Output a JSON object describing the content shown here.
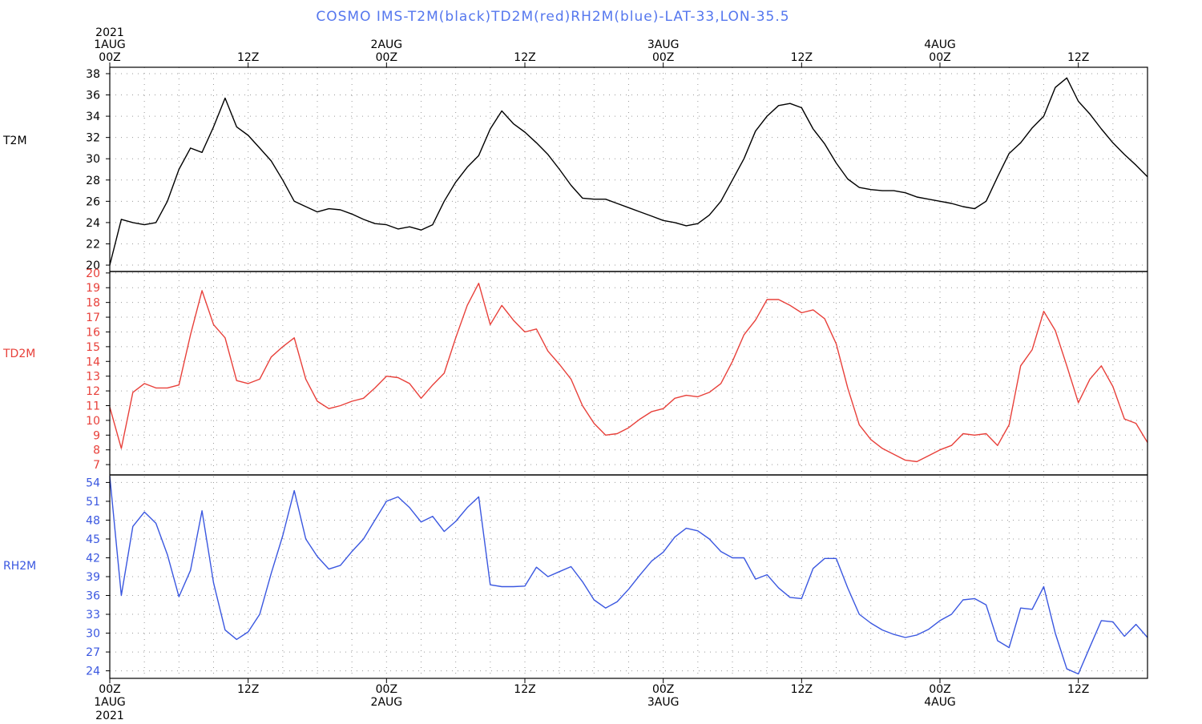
{
  "title": "COSMO  IMS-T2M(black)TD2M(red)RH2M(blue)-LAT-33,LON-35.5",
  "colors": {
    "t2m": "#000000",
    "td2m": "#e8403a",
    "rh2m": "#3a57e0",
    "title": "#5577ee"
  },
  "x_labels": {
    "year": "2021",
    "ticks": [
      {
        "t": 0,
        "top": [
          "1AUG",
          "00Z"
        ],
        "bottom": [
          "00Z",
          "1AUG"
        ]
      },
      {
        "t": 12,
        "top": [
          "12Z"
        ],
        "bottom": [
          "12Z"
        ]
      },
      {
        "t": 24,
        "top": [
          "2AUG",
          "00Z"
        ],
        "bottom": [
          "00Z",
          "2AUG"
        ]
      },
      {
        "t": 36,
        "top": [
          "12Z"
        ],
        "bottom": [
          "12Z"
        ]
      },
      {
        "t": 48,
        "top": [
          "3AUG",
          "00Z"
        ],
        "bottom": [
          "00Z",
          "3AUG"
        ]
      },
      {
        "t": 60,
        "top": [
          "12Z"
        ],
        "bottom": [
          "12Z"
        ]
      },
      {
        "t": 72,
        "top": [
          "4AUG",
          "00Z"
        ],
        "bottom": [
          "00Z",
          "4AUG"
        ]
      },
      {
        "t": 84,
        "top": [
          "12Z"
        ],
        "bottom": [
          "12Z"
        ]
      }
    ]
  },
  "chart_data": [
    {
      "type": "line",
      "panel": "T2M",
      "ylabel": "T2M",
      "color": "#000000",
      "ylim": [
        19.4,
        38.6
      ],
      "yticks": [
        20,
        22,
        24,
        26,
        28,
        30,
        32,
        34,
        36,
        38
      ],
      "grid": true,
      "x_hours": [
        0,
        1,
        2,
        3,
        4,
        5,
        6,
        7,
        8,
        9,
        10,
        11,
        12,
        13,
        14,
        15,
        16,
        17,
        18,
        19,
        20,
        21,
        22,
        23,
        24,
        25,
        26,
        27,
        28,
        29,
        30,
        31,
        32,
        33,
        34,
        35,
        36,
        37,
        38,
        39,
        40,
        41,
        42,
        43,
        44,
        45,
        46,
        47,
        48,
        49,
        50,
        51,
        52,
        53,
        54,
        55,
        56,
        57,
        58,
        59,
        60,
        61,
        62,
        63,
        64,
        65,
        66,
        67,
        68,
        69,
        70,
        71,
        72,
        73,
        74,
        75,
        76,
        77,
        78,
        79,
        80,
        81,
        82,
        83,
        84,
        85,
        86,
        87,
        88,
        89,
        90
      ],
      "values": [
        20.0,
        24.3,
        24.0,
        23.8,
        24.0,
        26.0,
        29.0,
        31.0,
        30.6,
        33.0,
        35.7,
        33.0,
        32.2,
        31.0,
        29.8,
        28.0,
        26.0,
        25.5,
        25.0,
        25.3,
        25.2,
        24.8,
        24.3,
        23.9,
        23.8,
        23.4,
        23.6,
        23.3,
        23.8,
        26.0,
        27.8,
        29.2,
        30.3,
        32.8,
        34.5,
        33.3,
        32.5,
        31.5,
        30.4,
        29.0,
        27.5,
        26.3,
        26.2,
        26.2,
        25.8,
        25.4,
        25.0,
        24.6,
        24.2,
        24.0,
        23.7,
        23.9,
        24.7,
        26.0,
        28.0,
        30.0,
        32.6,
        34.0,
        35.0,
        35.2,
        34.8,
        32.8,
        31.4,
        29.6,
        28.1,
        27.3,
        27.1,
        27.0,
        27.0,
        26.8,
        26.4,
        26.2,
        26.0,
        25.8,
        25.5,
        25.3,
        26.0,
        28.3,
        30.5,
        31.5,
        32.9,
        34.0,
        36.7,
        37.6,
        35.4,
        34.2,
        32.8,
        31.5,
        30.4,
        29.4,
        28.3
      ]
    },
    {
      "type": "line",
      "panel": "TD2M",
      "ylabel": "TD2M",
      "color": "#e8403a",
      "ylim": [
        6.3,
        20.1
      ],
      "yticks": [
        7,
        8,
        9,
        10,
        11,
        12,
        13,
        14,
        15,
        16,
        17,
        18,
        19,
        20
      ],
      "grid": true,
      "x_hours": [
        0,
        1,
        2,
        3,
        4,
        5,
        6,
        7,
        8,
        9,
        10,
        11,
        12,
        13,
        14,
        15,
        16,
        17,
        18,
        19,
        20,
        21,
        22,
        23,
        24,
        25,
        26,
        27,
        28,
        29,
        30,
        31,
        32,
        33,
        34,
        35,
        36,
        37,
        38,
        39,
        40,
        41,
        42,
        43,
        44,
        45,
        46,
        47,
        48,
        49,
        50,
        51,
        52,
        53,
        54,
        55,
        56,
        57,
        58,
        59,
        60,
        61,
        62,
        63,
        64,
        65,
        66,
        67,
        68,
        69,
        70,
        71,
        72,
        73,
        74,
        75,
        76,
        77,
        78,
        79,
        80,
        81,
        82,
        83,
        84,
        85,
        86,
        87,
        88,
        89,
        90
      ],
      "values": [
        10.9,
        8.1,
        11.9,
        12.5,
        12.2,
        12.2,
        12.4,
        15.8,
        18.8,
        16.5,
        15.6,
        12.7,
        12.5,
        12.8,
        14.3,
        15.0,
        15.6,
        12.8,
        11.3,
        10.8,
        11.0,
        11.3,
        11.5,
        12.2,
        13.0,
        12.9,
        12.5,
        11.5,
        12.4,
        13.2,
        15.6,
        17.8,
        19.3,
        16.5,
        17.8,
        16.8,
        16.0,
        16.2,
        14.7,
        13.8,
        12.8,
        11.0,
        9.8,
        9.0,
        9.1,
        9.5,
        10.1,
        10.6,
        10.8,
        11.5,
        11.7,
        11.6,
        11.9,
        12.5,
        14.0,
        15.8,
        16.8,
        18.2,
        18.2,
        17.8,
        17.3,
        17.5,
        16.9,
        15.2,
        12.2,
        9.7,
        8.7,
        8.1,
        7.7,
        7.3,
        7.2,
        7.6,
        8.0,
        8.3,
        9.1,
        9.0,
        9.1,
        8.3,
        9.7,
        13.7,
        14.8,
        17.4,
        16.1,
        13.7,
        11.2,
        12.8,
        13.7,
        12.3,
        10.1,
        9.8,
        8.5
      ]
    },
    {
      "type": "line",
      "panel": "RH2M",
      "ylabel": "RH2M",
      "color": "#3a57e0",
      "ylim": [
        22.8,
        55.2
      ],
      "yticks": [
        24,
        27,
        30,
        33,
        36,
        39,
        42,
        45,
        48,
        51,
        54
      ],
      "grid": true,
      "x_hours": [
        0,
        1,
        2,
        3,
        4,
        5,
        6,
        7,
        8,
        9,
        10,
        11,
        12,
        13,
        14,
        15,
        16,
        17,
        18,
        19,
        20,
        21,
        22,
        23,
        24,
        25,
        26,
        27,
        28,
        29,
        30,
        31,
        32,
        33,
        34,
        35,
        36,
        37,
        38,
        39,
        40,
        41,
        42,
        43,
        44,
        45,
        46,
        47,
        48,
        49,
        50,
        51,
        52,
        53,
        54,
        55,
        56,
        57,
        58,
        59,
        60,
        61,
        62,
        63,
        64,
        65,
        66,
        67,
        68,
        69,
        70,
        71,
        72,
        73,
        74,
        75,
        76,
        77,
        78,
        79,
        80,
        81,
        82,
        83,
        84,
        85,
        86,
        87,
        88,
        89,
        90
      ],
      "values": [
        55.0,
        36.0,
        47.0,
        49.3,
        47.5,
        42.5,
        35.8,
        40.0,
        49.5,
        38.0,
        30.5,
        29.0,
        30.2,
        33.0,
        39.5,
        45.5,
        52.7,
        45.0,
        42.2,
        40.2,
        40.8,
        43.0,
        45.0,
        48.0,
        51.0,
        51.7,
        50.0,
        47.7,
        48.6,
        46.2,
        47.8,
        50.0,
        51.7,
        37.7,
        37.4,
        37.4,
        37.5,
        40.5,
        39.0,
        39.8,
        40.6,
        38.2,
        35.3,
        34.0,
        35.0,
        37.0,
        39.3,
        41.5,
        42.9,
        45.3,
        46.7,
        46.3,
        45.0,
        43.0,
        42.0,
        42.0,
        38.6,
        39.3,
        37.2,
        35.7,
        35.5,
        40.3,
        41.9,
        41.9,
        37.2,
        33.0,
        31.6,
        30.5,
        29.8,
        29.3,
        29.7,
        30.6,
        32.0,
        33.0,
        35.3,
        35.5,
        34.5,
        28.8,
        27.7,
        34.0,
        33.8,
        37.4,
        30.0,
        24.3,
        23.5,
        27.8,
        32.0,
        31.8,
        29.5,
        31.4,
        29.3
      ]
    }
  ]
}
